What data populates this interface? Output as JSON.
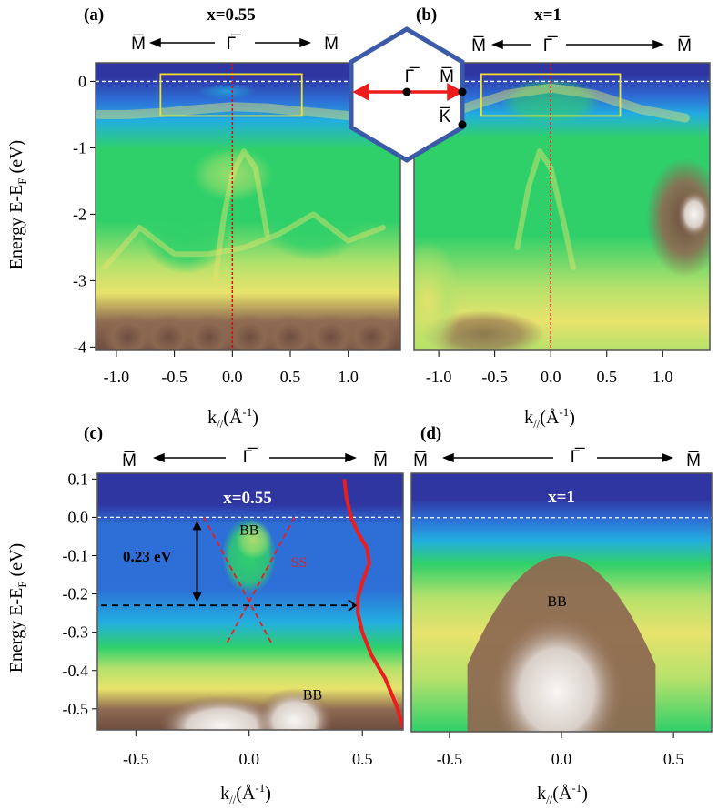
{
  "figure": {
    "colors": {
      "colormap": [
        "#2f36a2",
        "#2d6fd6",
        "#22aee0",
        "#2fd06a",
        "#b4e16b",
        "#e8e36c",
        "#8e6a52",
        "#6e4d40",
        "#f8f6f4"
      ],
      "frame": "#555555",
      "yellow_box": "#f2e22a",
      "red": "#ee1c1c",
      "red_dark": "#cc1111",
      "hexagon": "#3b5aa8",
      "white": "#ffffff",
      "black": "#000000"
    }
  },
  "chart_data": [
    {
      "panel": "(a)",
      "type": "heatmap",
      "title": "x=0.55",
      "xlabel": "k//(Å-1)",
      "ylabel": "Energy E-EF (eV)",
      "xlim": [
        -1.18,
        1.45
      ],
      "ylim": [
        -4.05,
        0.28
      ],
      "xticks": [
        -1.0,
        -0.5,
        0.0,
        0.5,
        1.0
      ],
      "xtick_labels": [
        "-1.0",
        "-0.5",
        "0.0",
        "0.5",
        "1.0"
      ],
      "yticks": [
        0,
        -1,
        -2,
        -3,
        -4
      ],
      "ytick_labels": [
        "0",
        "-1",
        "-2",
        "-3",
        "-4"
      ],
      "direction_labels": [
        "M̅",
        "Γ̅",
        "M̅"
      ],
      "fermi_level": 0,
      "highlight_box": {
        "k": [
          -0.62,
          0.6
        ],
        "e": [
          -0.52,
          0.11
        ]
      },
      "bands": [
        {
          "name": "edge",
          "k": [
            -1.18,
            -0.9,
            -0.6,
            -0.3,
            0.0,
            0.3,
            0.6,
            0.9,
            1.2,
            1.45
          ],
          "e": [
            -0.5,
            -0.5,
            -0.47,
            -0.42,
            -0.38,
            -0.4,
            -0.45,
            -0.5,
            -0.55,
            -0.6
          ]
        },
        {
          "name": "dispersive",
          "k": [
            -0.15,
            -0.07,
            0.0,
            0.1,
            0.2,
            0.3
          ],
          "e": [
            -3.0,
            -2.0,
            -1.4,
            -1.05,
            -1.3,
            -2.3
          ]
        },
        {
          "name": "lower",
          "k": [
            -1.1,
            -0.8,
            -0.5,
            -0.2,
            0.1,
            0.4,
            0.7,
            1.0,
            1.3
          ],
          "e": [
            -2.8,
            -2.2,
            -2.6,
            -2.6,
            -2.5,
            -2.3,
            -2.0,
            -2.4,
            -2.2
          ]
        }
      ]
    },
    {
      "panel": "(b)",
      "type": "heatmap",
      "title": "x=1",
      "xlabel": "k//(Å-1)",
      "xlim": [
        -1.22,
        1.42
      ],
      "ylim": [
        -4.05,
        0.28
      ],
      "xticks": [
        -1.0,
        -0.5,
        0.0,
        0.5,
        1.0
      ],
      "xtick_labels": [
        "-1.0",
        "-0.5",
        "0.0",
        "0.5",
        "1.0"
      ],
      "direction_labels": [
        "M̅",
        "Γ̅",
        "M̅"
      ],
      "fermi_level": 0,
      "highlight_box": {
        "k": [
          -0.62,
          0.62
        ],
        "e": [
          -0.52,
          0.11
        ]
      },
      "bands": [
        {
          "name": "edge",
          "k": [
            -1.2,
            -0.8,
            -0.4,
            0.0,
            0.4,
            0.8,
            1.2
          ],
          "e": [
            -0.55,
            -0.42,
            -0.2,
            -0.1,
            -0.2,
            -0.42,
            -0.55
          ]
        },
        {
          "name": "dispersive",
          "k": [
            -0.3,
            -0.2,
            -0.1,
            0.0,
            0.1,
            0.2
          ],
          "e": [
            -2.5,
            -1.6,
            -1.05,
            -1.3,
            -2.0,
            -2.8
          ]
        }
      ]
    },
    {
      "panel": "(c)",
      "type": "heatmap",
      "title": "x=0.55",
      "xlabel": "k//(Å-1)",
      "ylabel": "Energy E-EF (eV)",
      "xlim": [
        -0.67,
        0.68
      ],
      "ylim": [
        -0.555,
        0.115
      ],
      "xticks": [
        -0.5,
        0.0,
        0.5
      ],
      "xtick_labels": [
        "-0.5",
        "0.0",
        "0.5"
      ],
      "yticks": [
        0.1,
        0.0,
        -0.1,
        -0.2,
        -0.3,
        -0.4,
        -0.5
      ],
      "ytick_labels": [
        "0.1",
        "0.0",
        "-0.1",
        "-0.2",
        "-0.3",
        "-0.4",
        "-0.5"
      ],
      "direction_labels": [
        "M̅",
        "Γ̅",
        "M̅"
      ],
      "fermi_level": 0,
      "dirac_point": -0.23,
      "gap_annotation": "0.23 eV",
      "band_labels": [
        "BB",
        "SS",
        "BB"
      ],
      "surface_states": [
        {
          "k": [
            -0.2,
            0.1
          ],
          "e": [
            0.0,
            -0.33
          ]
        },
        {
          "k": [
            0.2,
            -0.1
          ],
          "e": [
            0.0,
            -0.33
          ]
        }
      ],
      "edc_curve": {
        "k": [
          0.42,
          0.43,
          0.45,
          0.48,
          0.52,
          0.53,
          0.5,
          0.48,
          0.48,
          0.5,
          0.54,
          0.6,
          0.65,
          0.68
        ],
        "e": [
          0.1,
          0.05,
          0.0,
          -0.04,
          -0.08,
          -0.12,
          -0.17,
          -0.21,
          -0.25,
          -0.3,
          -0.36,
          -0.42,
          -0.49,
          -0.55
        ]
      }
    },
    {
      "panel": "(d)",
      "type": "heatmap",
      "title": "x=1",
      "xlabel": "k//(Å-1)",
      "xlim": [
        -0.67,
        0.67
      ],
      "ylim": [
        -0.555,
        0.115
      ],
      "xticks": [
        -0.5,
        0.0,
        0.5
      ],
      "xtick_labels": [
        "-0.5",
        "0.0",
        "0.5"
      ],
      "direction_labels": [
        "M̅",
        "Γ̅",
        "M̅"
      ],
      "fermi_level": 0,
      "band_labels": [
        "BB"
      ]
    }
  ],
  "inset": {
    "description_labels": [
      "Γ̅",
      "M̅",
      "K̅"
    ]
  }
}
